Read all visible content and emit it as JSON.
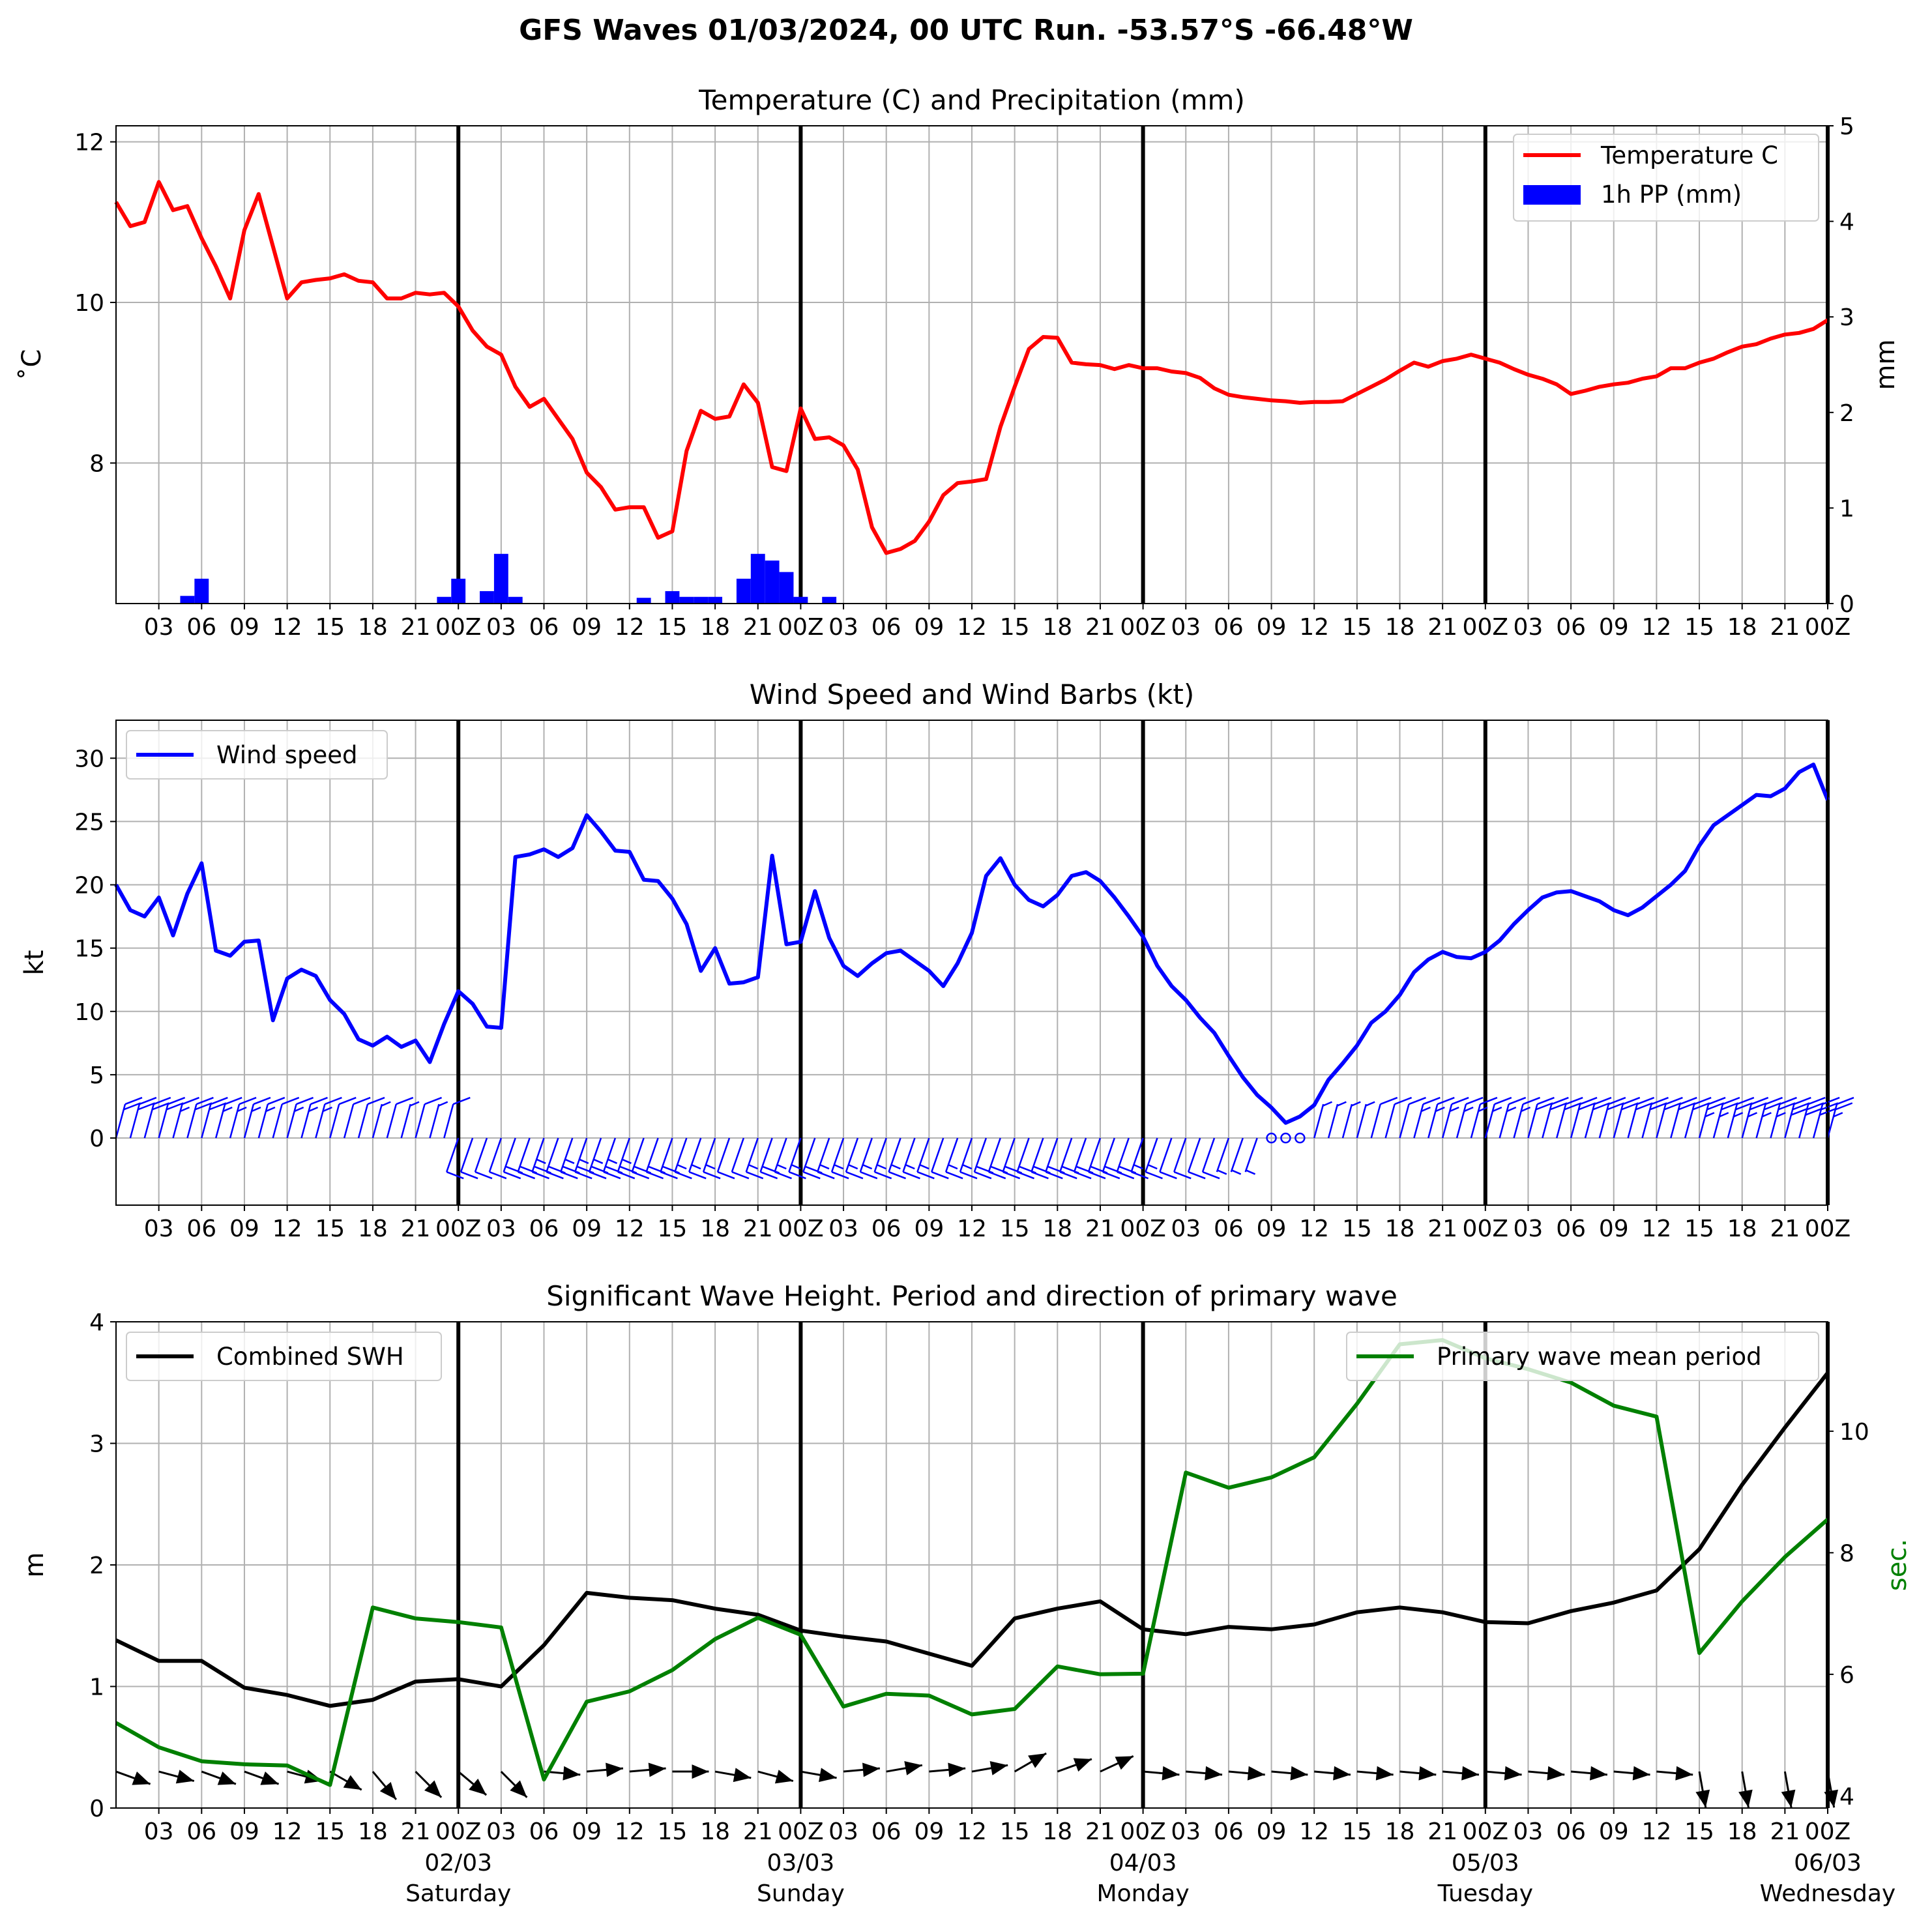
{
  "figure": {
    "suptitle": "GFS Waves 01/03/2024, 00 UTC Run. -53.57°S -66.48°W",
    "hour_ticks": [
      "03",
      "06",
      "09",
      "12",
      "15",
      "18",
      "21",
      "00Z",
      "03",
      "06",
      "09",
      "12",
      "15",
      "18",
      "21",
      "00Z",
      "03",
      "06",
      "09",
      "12",
      "15",
      "18",
      "21",
      "00Z",
      "03",
      "06",
      "09",
      "12",
      "15",
      "18",
      "21",
      "00Z",
      "03",
      "06",
      "09",
      "12",
      "15",
      "18",
      "21",
      "00Z"
    ],
    "day_dates": [
      "02/03",
      "03/03",
      "04/03",
      "05/03",
      "06/03"
    ],
    "day_names": [
      "Saturday",
      "Sunday",
      "Monday",
      "Tuesday",
      "Wednesday"
    ]
  },
  "chart_data": [
    {
      "type": "line",
      "title": "Temperature (C) and Precipitation (mm)",
      "ylabel": "˚C",
      "y2label": "mm",
      "ylim": [
        6.25,
        12.2
      ],
      "y2lim": [
        0,
        5
      ],
      "yticks": [
        8,
        10,
        12
      ],
      "y2ticks": [
        0,
        1,
        2,
        3,
        4,
        5
      ],
      "x_unit": "hours since 01/03/2024 00 UTC",
      "xlim": [
        0,
        120
      ],
      "grid": true,
      "legend_position": "top-right",
      "series": [
        {
          "name": "Temperature C",
          "color": "#ff0000",
          "x": [
            0,
            1,
            2,
            3,
            4,
            5,
            6,
            7,
            8,
            9,
            10,
            11,
            12,
            13,
            14,
            15,
            16,
            17,
            18,
            19,
            20,
            21,
            22,
            23,
            24,
            25,
            26,
            27,
            28,
            29,
            30,
            31,
            32,
            33,
            34,
            35,
            36,
            37,
            38,
            39,
            40,
            41,
            42,
            43,
            44,
            45,
            46,
            47,
            48,
            49,
            50,
            51,
            52,
            53,
            54,
            55,
            56,
            57,
            58,
            59,
            60,
            61,
            62,
            63,
            64,
            65,
            66,
            67,
            68,
            69,
            70,
            71,
            72,
            73,
            74,
            75,
            76,
            77,
            78,
            79,
            80,
            81,
            82,
            83,
            84,
            85,
            86,
            87,
            88,
            89,
            90,
            91,
            92,
            93,
            94,
            95,
            96,
            97,
            98,
            99,
            100,
            101,
            102,
            103,
            104,
            105,
            106,
            107,
            108,
            109,
            110,
            111,
            112,
            113,
            114,
            115,
            116,
            117,
            118,
            119,
            120
          ],
          "values": [
            11.25,
            10.95,
            11.0,
            11.5,
            11.15,
            11.2,
            10.8,
            10.45,
            10.05,
            10.9,
            11.35,
            10.7,
            10.05,
            10.25,
            10.28,
            10.3,
            10.35,
            10.27,
            10.25,
            10.05,
            10.05,
            10.12,
            10.1,
            10.12,
            9.95,
            9.65,
            9.45,
            9.35,
            8.95,
            8.7,
            8.8,
            8.55,
            8.3,
            7.88,
            7.7,
            7.42,
            7.45,
            7.45,
            7.07,
            7.15,
            8.15,
            8.65,
            8.55,
            8.58,
            8.98,
            8.75,
            7.95,
            7.9,
            8.68,
            8.3,
            8.32,
            8.22,
            7.92,
            7.2,
            6.88,
            6.93,
            7.03,
            7.27,
            7.6,
            7.75,
            7.77,
            7.8,
            8.45,
            8.95,
            9.42,
            9.57,
            9.56,
            9.25,
            9.23,
            9.22,
            9.17,
            9.22,
            9.18,
            9.18,
            9.14,
            9.12,
            9.06,
            8.93,
            8.85,
            8.82,
            8.8,
            8.78,
            8.77,
            8.75,
            8.76,
            8.76,
            8.77,
            8.86,
            8.95,
            9.04,
            9.15,
            9.25,
            9.2,
            9.27,
            9.3,
            9.35,
            9.3,
            9.25,
            9.17,
            9.1,
            9.05,
            8.98,
            8.86,
            8.9,
            8.95,
            8.98,
            9.0,
            9.05,
            9.08,
            9.18,
            9.18,
            9.25,
            9.3,
            9.38,
            9.45,
            9.48,
            9.55,
            9.6,
            9.62,
            9.67,
            9.78
          ]
        },
        {
          "name": "1h PP (mm)",
          "type": "bar",
          "color": "#0000ff",
          "x": [
            5,
            6,
            23,
            24,
            26,
            27,
            28,
            37,
            39,
            40,
            41,
            42,
            44,
            45,
            46,
            47,
            48,
            50
          ],
          "values": [
            0.08,
            0.26,
            0.07,
            0.26,
            0.13,
            0.52,
            0.07,
            0.06,
            0.13,
            0.07,
            0.07,
            0.07,
            0.26,
            0.52,
            0.45,
            0.33,
            0.07,
            0.07
          ]
        }
      ]
    },
    {
      "type": "line",
      "title": "Wind Speed and Wind Barbs (kt)",
      "ylabel": "kt",
      "ylim": [
        -5.3,
        33
      ],
      "yticks": [
        0,
        5,
        10,
        15,
        20,
        25,
        30
      ],
      "x_unit": "hours since 01/03/2024 00 UTC",
      "xlim": [
        0,
        120
      ],
      "grid": true,
      "legend_position": "top-left",
      "barbs_row_y": 0,
      "barbs_color": "#0000ff",
      "series": [
        {
          "name": "Wind speed",
          "color": "#0000ff",
          "x": [
            0,
            1,
            2,
            3,
            4,
            5,
            6,
            7,
            8,
            9,
            10,
            11,
            12,
            13,
            14,
            15,
            16,
            17,
            18,
            19,
            20,
            21,
            22,
            23,
            24,
            25,
            26,
            27,
            28,
            29,
            30,
            31,
            32,
            33,
            34,
            35,
            36,
            37,
            38,
            39,
            40,
            41,
            42,
            43,
            44,
            45,
            46,
            47,
            48,
            49,
            50,
            51,
            52,
            53,
            54,
            55,
            56,
            57,
            58,
            59,
            60,
            61,
            62,
            63,
            64,
            65,
            66,
            67,
            68,
            69,
            70,
            71,
            72,
            73,
            74,
            75,
            76,
            77,
            78,
            79,
            80,
            81,
            82,
            83,
            84,
            85,
            86,
            87,
            88,
            89,
            90,
            91,
            92,
            93,
            94,
            95,
            96,
            97,
            98,
            99,
            100,
            101,
            102,
            103,
            104,
            105,
            106,
            107,
            108,
            109,
            110,
            111,
            112,
            113,
            114,
            115,
            116,
            117,
            118,
            119,
            120
          ],
          "values": [
            20.0,
            18.0,
            17.5,
            19.0,
            16.0,
            19.3,
            21.7,
            14.8,
            14.4,
            15.5,
            15.6,
            9.3,
            12.6,
            13.3,
            12.8,
            10.9,
            9.8,
            7.8,
            7.3,
            8.0,
            7.2,
            7.7,
            6.0,
            9.0,
            11.6,
            10.6,
            8.8,
            8.7,
            22.2,
            22.4,
            22.8,
            22.2,
            22.9,
            25.5,
            24.2,
            22.7,
            22.6,
            20.4,
            20.3,
            18.9,
            16.9,
            13.2,
            15.0,
            12.2,
            12.3,
            12.7,
            22.3,
            15.3,
            15.5,
            19.5,
            15.8,
            13.6,
            12.8,
            13.8,
            14.6,
            14.8,
            14.0,
            13.2,
            12.0,
            13.8,
            16.2,
            20.7,
            22.1,
            20.0,
            18.8,
            18.3,
            19.2,
            20.7,
            21.0,
            20.3,
            19.0,
            17.5,
            15.9,
            13.6,
            12.0,
            10.9,
            9.5,
            8.3,
            6.5,
            4.8,
            3.4,
            2.4,
            1.2,
            1.7,
            2.6,
            4.6,
            5.9,
            7.3,
            9.1,
            10.0,
            11.3,
            13.1,
            14.1,
            14.7,
            14.3,
            14.2,
            14.7,
            15.6,
            16.9,
            18.0,
            19.0,
            19.4,
            19.5,
            19.1,
            18.7,
            18.0,
            17.6,
            18.2,
            19.1,
            20.0,
            21.1,
            23.1,
            24.7,
            25.5,
            26.3,
            27.1,
            27.0,
            27.6,
            28.9,
            29.5,
            26.7
          ]
        }
      ]
    },
    {
      "type": "line",
      "title": "Significant Wave Height. Period and direction of primary wave",
      "ylabel": "m",
      "y2label": "sec.",
      "ylim": [
        0,
        4
      ],
      "y2lim": [
        3.8,
        11.8
      ],
      "yticks": [
        0,
        1,
        2,
        3,
        4
      ],
      "y2ticks": [
        4,
        6,
        8,
        10
      ],
      "x_unit": "hours since 01/03/2024 00 UTC",
      "xlim": [
        0,
        120
      ],
      "grid": true,
      "series": [
        {
          "name": "Combined SWH",
          "color": "#000000",
          "legend_position": "top-left",
          "x": [
            0,
            3,
            6,
            9,
            12,
            15,
            18,
            21,
            24,
            27,
            30,
            33,
            36,
            39,
            42,
            45,
            48,
            51,
            54,
            57,
            60,
            63,
            66,
            69,
            72,
            75,
            78,
            81,
            84,
            87,
            90,
            93,
            96,
            99,
            102,
            105,
            108,
            111,
            114,
            117,
            120
          ],
          "values": [
            1.38,
            1.21,
            1.21,
            0.99,
            0.93,
            0.84,
            0.89,
            1.04,
            1.06,
            1.0,
            1.34,
            1.77,
            1.73,
            1.71,
            1.64,
            1.59,
            1.46,
            1.41,
            1.37,
            1.27,
            1.17,
            1.56,
            1.64,
            1.7,
            1.47,
            1.43,
            1.49,
            1.47,
            1.51,
            1.61,
            1.65,
            1.61,
            1.53,
            1.52,
            1.62,
            1.69,
            1.79,
            2.13,
            2.66,
            3.13,
            3.58
          ]
        },
        {
          "name": "Primary wave mean period",
          "color": "#008000",
          "legend_position": "top-right",
          "x": [
            0,
            3,
            6,
            9,
            12,
            15,
            18,
            21,
            24,
            27,
            30,
            33,
            36,
            39,
            42,
            45,
            48,
            51,
            54,
            57,
            60,
            63,
            66,
            69,
            72,
            75,
            78,
            81,
            84,
            87,
            90,
            93,
            96,
            99,
            102,
            105,
            108,
            111,
            114,
            117,
            120
          ],
          "values": [
            5.2,
            4.8,
            4.57,
            4.52,
            4.5,
            4.18,
            7.1,
            6.92,
            6.86,
            6.77,
            4.27,
            5.55,
            5.72,
            6.07,
            6.58,
            6.93,
            6.65,
            5.47,
            5.68,
            5.65,
            5.34,
            5.43,
            6.13,
            6.0,
            6.01,
            9.32,
            9.07,
            9.24,
            9.57,
            10.45,
            11.43,
            11.5,
            11.2,
            11.02,
            10.8,
            10.42,
            10.24,
            6.35,
            7.2,
            7.93,
            8.55
          ]
        }
      ],
      "wave_direction_arrows": {
        "color": "#000000",
        "row_y_m": 0.3,
        "x": [
          0,
          3,
          6,
          9,
          12,
          15,
          18,
          21,
          24,
          27,
          30,
          33,
          36,
          39,
          42,
          45,
          48,
          51,
          54,
          57,
          60,
          63,
          66,
          69,
          72,
          75,
          78,
          81,
          84,
          87,
          90,
          93,
          96,
          99,
          102,
          105,
          108,
          111,
          114,
          117,
          120
        ],
        "to_direction_deg": [
          110,
          105,
          110,
          110,
          105,
          120,
          140,
          135,
          130,
          135,
          95,
          85,
          85,
          90,
          100,
          105,
          100,
          85,
          80,
          85,
          80,
          60,
          70,
          65,
          95,
          95,
          95,
          95,
          95,
          95,
          95,
          95,
          95,
          95,
          95,
          95,
          95,
          170,
          170,
          170,
          170
        ]
      }
    }
  ]
}
